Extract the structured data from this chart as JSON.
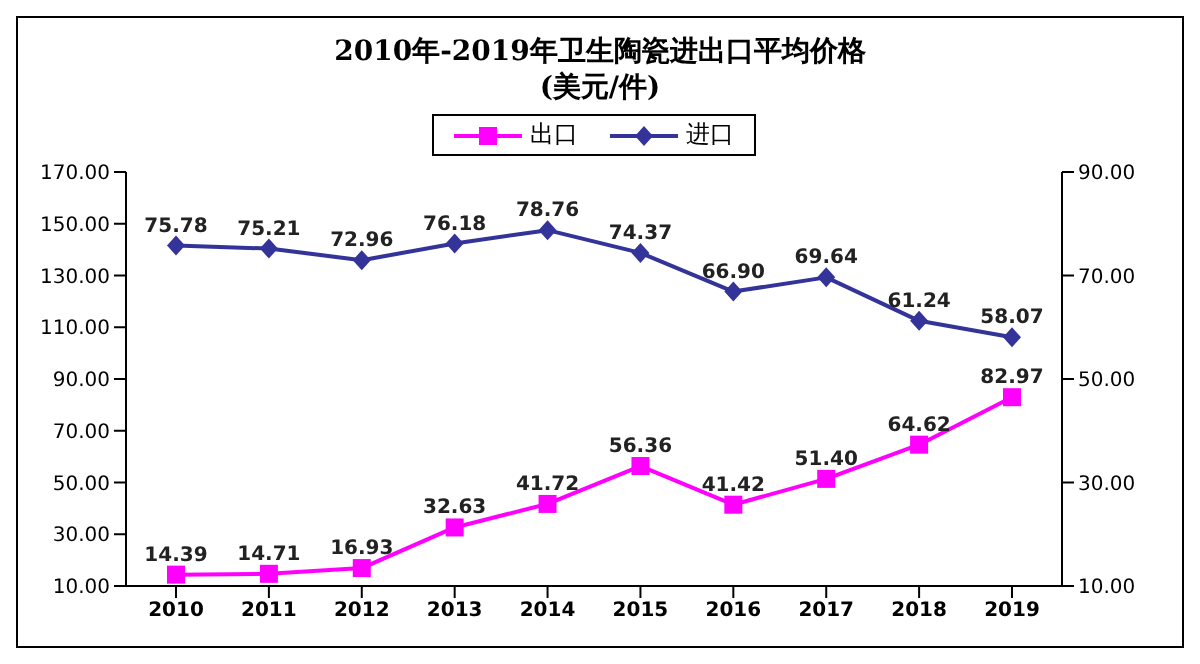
{
  "chart_data": {
    "type": "line",
    "title": "2010年-2019年卫生陶瓷进出口平均价格",
    "subtitle": "(美元/件)",
    "categories": [
      "2010",
      "2011",
      "2012",
      "2013",
      "2014",
      "2015",
      "2016",
      "2017",
      "2018",
      "2019"
    ],
    "series": [
      {
        "name": "出口",
        "color": "#ff00ff",
        "marker": "square",
        "axis": "y",
        "values": [
          14.39,
          14.71,
          16.93,
          32.63,
          41.72,
          56.36,
          41.42,
          51.4,
          64.62,
          82.97
        ],
        "value_labels": [
          "14.39",
          "14.71",
          "16.93",
          "32.63",
          "41.72",
          "56.36",
          "41.42",
          "51.40",
          "64.62",
          "82.97"
        ]
      },
      {
        "name": "进口",
        "color": "#333399",
        "marker": "diamond",
        "axis": "y2",
        "values": [
          75.78,
          75.21,
          72.96,
          76.18,
          78.76,
          74.37,
          66.9,
          69.64,
          61.24,
          58.07
        ],
        "value_labels": [
          "75.78",
          "75.21",
          "72.96",
          "76.18",
          "78.76",
          "74.37",
          "66.90",
          "69.64",
          "61.24",
          "58.07"
        ]
      }
    ],
    "ylim": [
      10,
      170
    ],
    "yticks": [
      {
        "value": 10,
        "label": "10.00"
      },
      {
        "value": 30,
        "label": "30.00"
      },
      {
        "value": 50,
        "label": "50.00"
      },
      {
        "value": 70,
        "label": "70.00"
      },
      {
        "value": 90,
        "label": "90.00"
      },
      {
        "value": 110,
        "label": "110.00"
      },
      {
        "value": 130,
        "label": "130.00"
      },
      {
        "value": 150,
        "label": "150.00"
      },
      {
        "value": 170,
        "label": "170.00"
      }
    ],
    "y2lim": [
      10,
      90
    ],
    "y2ticks": [
      {
        "value": 10,
        "label": "10.00"
      },
      {
        "value": 30,
        "label": "30.00"
      },
      {
        "value": 50,
        "label": "50.00"
      },
      {
        "value": 70,
        "label": "70.00"
      },
      {
        "value": 90,
        "label": "90.00"
      }
    ],
    "grid": false,
    "legend": "top"
  }
}
